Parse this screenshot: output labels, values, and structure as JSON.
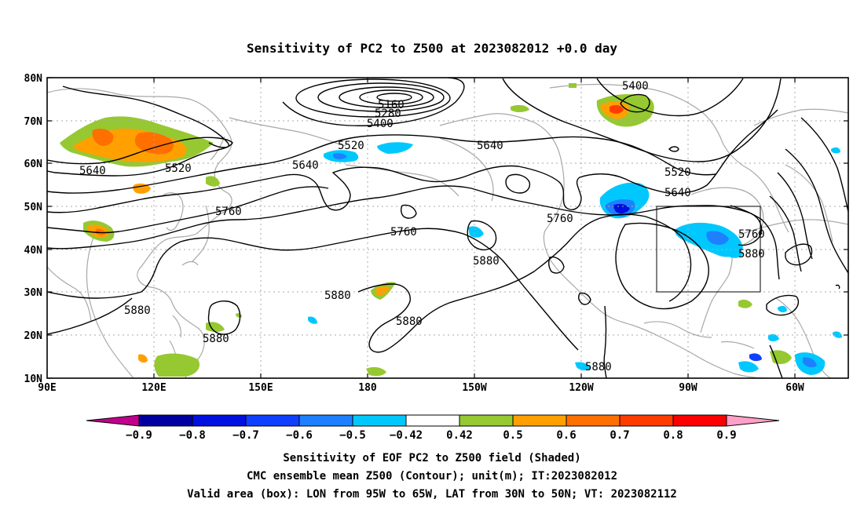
{
  "title": "Sensitivity of PC2 to Z500 at 2023082012 +0.0 day",
  "lat_ticks": [
    "80N",
    "70N",
    "60N",
    "50N",
    "40N",
    "30N",
    "20N",
    "10N"
  ],
  "lon_ticks": [
    "90E",
    "120E",
    "150E",
    "180",
    "150W",
    "120W",
    "90W",
    "60W"
  ],
  "contour_labels": [
    "5160",
    "5280",
    "5400",
    "5400",
    "5520",
    "5520",
    "5520",
    "5640",
    "5640",
    "5640",
    "5640",
    "5760",
    "5760",
    "5760",
    "5760",
    "5880",
    "5880",
    "5880",
    "5880",
    "5880",
    "5880",
    "5880"
  ],
  "colorbar": {
    "labels": [
      "−0.9",
      "−0.8",
      "−0.7",
      "−0.6",
      "−0.5",
      "−0.42",
      "0.42",
      "0.5",
      "0.6",
      "0.7",
      "0.8",
      "0.9"
    ],
    "colors": [
      "#c0008c",
      "#0000a0",
      "#0010e0",
      "#1040ff",
      "#1e80ff",
      "#00c8ff",
      "#ffffff",
      "#96c832",
      "#ffa000",
      "#ff7000",
      "#ff3c00",
      "#ff0000",
      "#ffa0c8"
    ]
  },
  "footer": [
    "Sensitivity of EOF PC2 to Z500 field (Shaded)",
    "CMC ensemble mean Z500 (Contour); unit(m); IT:2023082012",
    "Valid area (box): LON from 95W to 65W, LAT from 30N to 50N; VT: 2023082112"
  ],
  "map": {
    "projection": "lat-lon",
    "lon_range": [
      "90E",
      "60W"
    ],
    "lat_range": [
      "10N",
      "80N"
    ],
    "contour_field": "Z500",
    "contour_interval_m": 120,
    "valid_box": {
      "lon": [
        "95W",
        "65W"
      ],
      "lat": [
        "30N",
        "50N"
      ]
    }
  }
}
